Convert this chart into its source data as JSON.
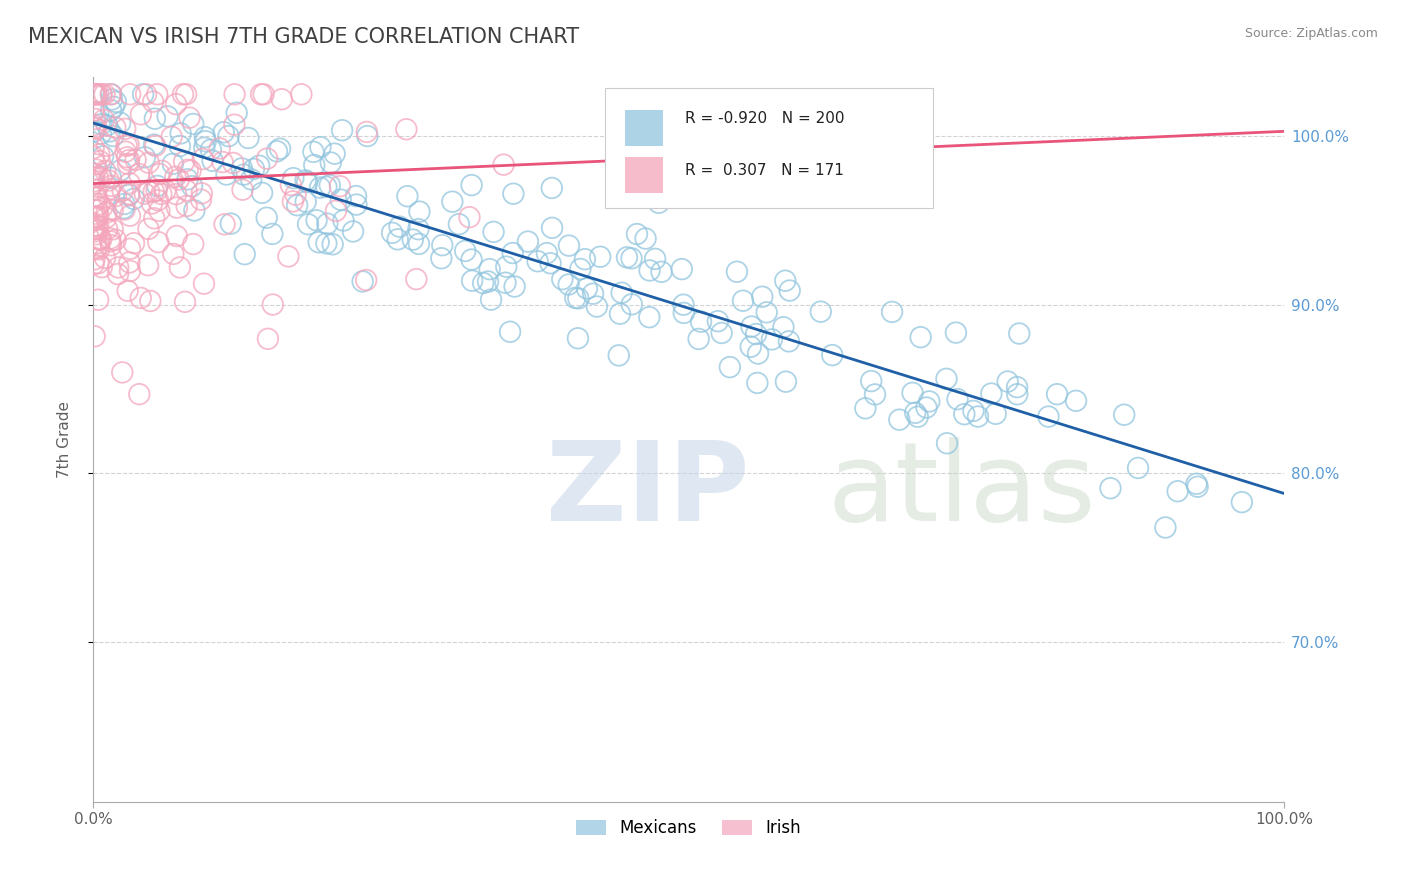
{
  "title": "MEXICAN VS IRISH 7TH GRADE CORRELATION CHART",
  "source_text": "Source: ZipAtlas.com",
  "ylabel": "7th Grade",
  "r_mexican": -0.92,
  "n_mexican": 200,
  "r_irish": 0.307,
  "n_irish": 171,
  "mexican_color": "#92c5de",
  "irish_color": "#f4a6bc",
  "mexican_line_color": "#1f5fa6",
  "irish_line_color": "#e8547a",
  "background_color": "#ffffff",
  "grid_color": "#c8c8c8",
  "title_color": "#404040",
  "title_fontsize": 15,
  "axis_label_color": "#606060",
  "right_tick_color": "#5b9bd5",
  "mexican_trend_x0": 0.0,
  "mexican_trend_y0": 1.008,
  "mexican_trend_x1": 1.0,
  "mexican_trend_y1": 0.788,
  "irish_trend_x0": 0.0,
  "irish_trend_y0": 0.972,
  "irish_trend_x1": 1.0,
  "irish_trend_y1": 1.003,
  "xlim_min": 0.0,
  "xlim_max": 1.0,
  "ylim_min": 0.605,
  "ylim_max": 1.035,
  "ytick_positions": [
    0.7,
    0.8,
    0.9,
    1.0
  ],
  "ytick_labels": [
    "70.0%",
    "80.0%",
    "90.0%",
    "100.0%"
  ],
  "xtick_positions": [
    0.0,
    1.0
  ],
  "xtick_labels": [
    "0.0%",
    "100.0%"
  ]
}
